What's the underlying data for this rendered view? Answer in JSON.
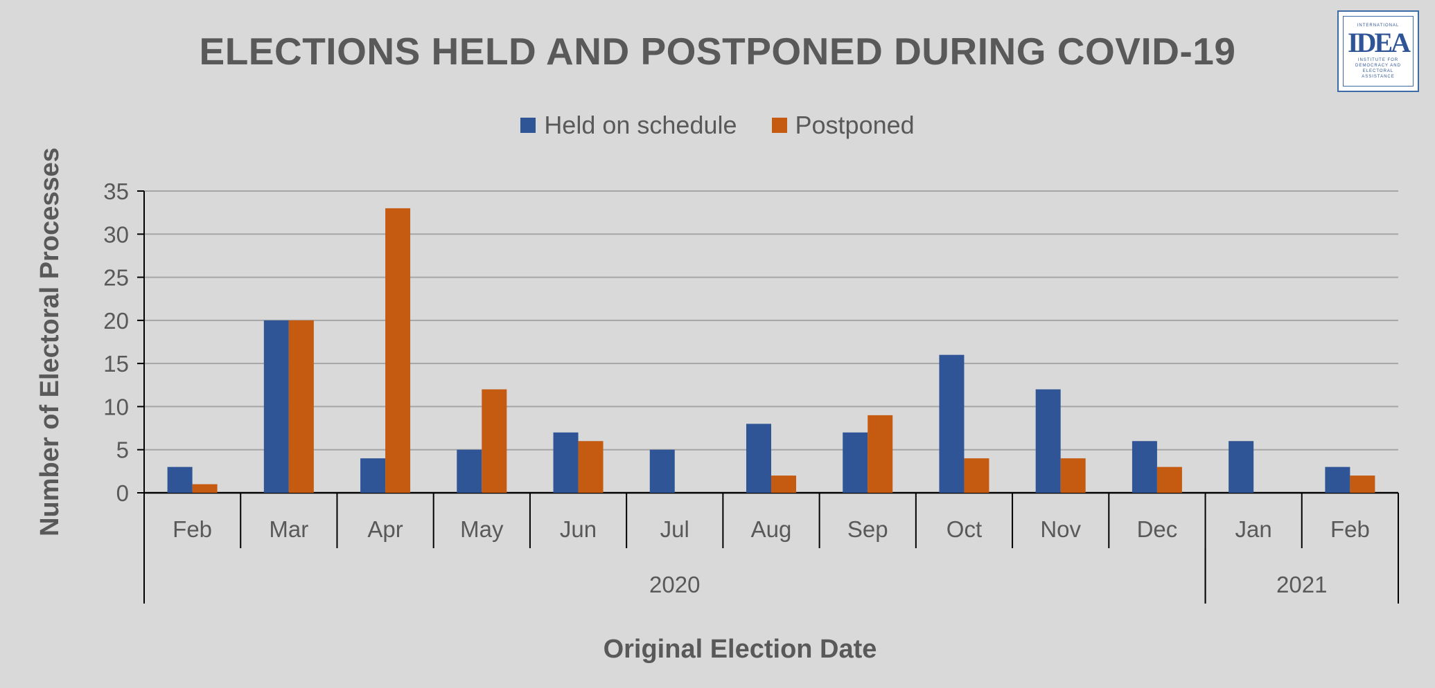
{
  "header": {
    "title": "ELECTIONS HELD AND POSTPONED DURING COVID-19"
  },
  "logo": {
    "top_text": "INTERNATIONAL",
    "mark": "IDEA",
    "bottom_text": "INSTITUTE FOR DEMOCRACY AND ELECTORAL ASSISTANCE"
  },
  "chart_data": {
    "type": "bar",
    "title": "ELECTIONS HELD AND POSTPONED DURING COVID-19",
    "xlabel": "Original Election Date",
    "ylabel": "Number of Electoral Processes",
    "categories": [
      "Feb",
      "Mar",
      "Apr",
      "May",
      "Jun",
      "Jul",
      "Aug",
      "Sep",
      "Oct",
      "Nov",
      "Dec",
      "Jan",
      "Feb"
    ],
    "groups": [
      {
        "label": "2020",
        "start": 0,
        "end": 10
      },
      {
        "label": "2021",
        "start": 11,
        "end": 12
      }
    ],
    "series": [
      {
        "name": "Held on schedule",
        "color": "#2f5597",
        "values": [
          3,
          20,
          4,
          5,
          7,
          5,
          8,
          7,
          16,
          12,
          6,
          6,
          3
        ]
      },
      {
        "name": "Postponed",
        "color": "#c55a11",
        "values": [
          1,
          20,
          33,
          12,
          6,
          0,
          2,
          9,
          4,
          4,
          3,
          0,
          2
        ]
      }
    ],
    "ylim": [
      0,
      35
    ],
    "yticks": [
      0,
      5,
      10,
      15,
      20,
      25,
      30,
      35
    ],
    "grid": true,
    "legend_position": "top-center"
  }
}
